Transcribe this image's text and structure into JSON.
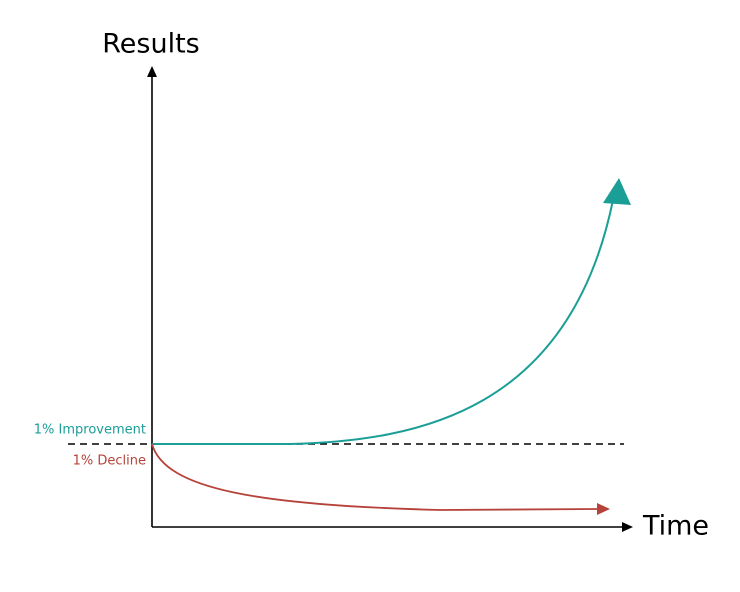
{
  "axes": {
    "y_label": "Results",
    "x_label": "Time"
  },
  "curves": {
    "improvement": {
      "label": "1% Improvement"
    },
    "decline": {
      "label": "1% Decline"
    }
  }
}
